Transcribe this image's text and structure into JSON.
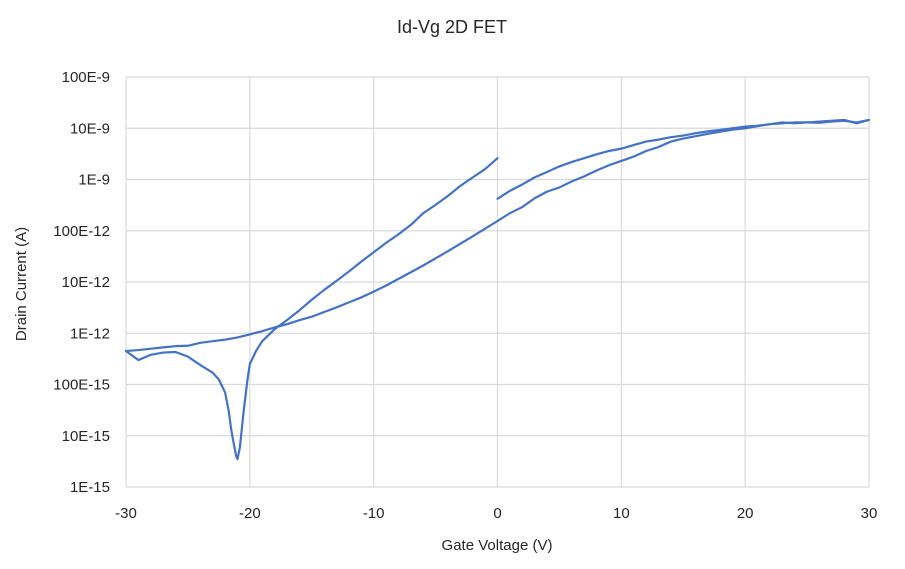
{
  "chart_data": {
    "type": "line",
    "title": "Id-Vg 2D FET",
    "xlabel": "Gate Voltage (V)",
    "ylabel": "Drain Current (A)",
    "xlim": [
      -30,
      30
    ],
    "xticks": [
      -30,
      -20,
      -10,
      0,
      10,
      20,
      30
    ],
    "xtick_labels": [
      "-30",
      "-20",
      "-10",
      "0",
      "10",
      "20",
      "30"
    ],
    "ylog": true,
    "ylim": [
      1e-15,
      1e-07
    ],
    "yticks": [
      1e-15,
      1e-14,
      1e-13,
      1e-12,
      1e-11,
      1e-10,
      1e-09,
      1e-08,
      1e-07
    ],
    "ytick_labels": [
      "1E-15",
      "10E-15",
      "100E-15",
      "1E-12",
      "10E-12",
      "100E-12",
      "1E-9",
      "10E-9",
      "100E-9"
    ],
    "grid": true,
    "legend": false,
    "color": "#4472C4",
    "series": [
      {
        "x": [
          -30,
          -29,
          -28,
          -27,
          -26,
          -25,
          -24.5,
          -24,
          -23,
          -22.5,
          -22,
          -21.7,
          -21.5,
          -21.3,
          -21.1,
          -21,
          -20.8,
          -20.5,
          -20.2,
          -20,
          -19.5,
          -19,
          -18,
          -17,
          -16,
          -15,
          -14,
          -13,
          -12,
          -11,
          -10,
          -9,
          -8,
          -7,
          -6,
          -5,
          -4,
          -3,
          -2,
          -1,
          0
        ],
        "y": [
          4.5e-13,
          3e-13,
          3.8e-13,
          4.2e-13,
          4.3e-13,
          3.5e-13,
          2.9e-13,
          2.4e-13,
          1.7e-13,
          1.25e-13,
          7e-14,
          3e-14,
          1.3e-14,
          7e-15,
          4e-15,
          3.5e-15,
          6e-15,
          3e-14,
          1.2e-13,
          2.5e-13,
          4.5e-13,
          7e-13,
          1.2e-12,
          1.8e-12,
          2.8e-12,
          4.5e-12,
          7e-12,
          1.05e-11,
          1.6e-11,
          2.5e-11,
          3.8e-11,
          5.8e-11,
          8.5e-11,
          1.3e-10,
          2.2e-10,
          3.2e-10,
          4.8e-10,
          7.5e-10,
          1.1e-09,
          1.6e-09,
          2.6e-09
        ]
      },
      {
        "x": [
          -30,
          -29,
          -28,
          -27,
          -26,
          -25,
          -24,
          -23,
          -22,
          -21,
          -20,
          -19,
          -18,
          -17,
          -16,
          -15,
          -14,
          -13,
          -12,
          -11,
          -10,
          -9,
          -8,
          -7,
          -6,
          -5,
          -4,
          -3,
          -2,
          -1,
          0
        ],
        "y": [
          4.5e-13,
          4.7e-13,
          5e-13,
          5.3e-13,
          5.6e-13,
          5.7e-13,
          6.5e-13,
          7e-13,
          7.5e-13,
          8.3e-13,
          9.5e-13,
          1.1e-12,
          1.3e-12,
          1.5e-12,
          1.8e-12,
          2.1e-12,
          2.6e-12,
          3.2e-12,
          4e-12,
          5e-12,
          6.5e-12,
          8.5e-12,
          1.15e-11,
          1.55e-11,
          2.1e-11,
          2.9e-11,
          4e-11,
          5.6e-11,
          7.8e-11,
          1.1e-10,
          1.55e-10
        ]
      },
      {
        "x": [
          0,
          1,
          2,
          3,
          4,
          5,
          6,
          7,
          8,
          9,
          10,
          11,
          12,
          13,
          14,
          15,
          16,
          17,
          18,
          19,
          20,
          21,
          22,
          23,
          24,
          25,
          26,
          27,
          28,
          29,
          30
        ],
        "y": [
          1.55e-10,
          2.2e-10,
          2.9e-10,
          4.3e-10,
          5.8e-10,
          7e-10,
          9.2e-10,
          1.15e-09,
          1.5e-09,
          1.9e-09,
          2.3e-09,
          2.8e-09,
          3.6e-09,
          4.3e-09,
          5.5e-09,
          6.3e-09,
          7e-09,
          7.8e-09,
          8.6e-09,
          9.4e-09,
          1e-08,
          1.1e-08,
          1.2e-08,
          1.3e-08,
          1.25e-08,
          1.3e-08,
          1.35e-08,
          1.4e-08,
          1.45e-08,
          1.25e-08,
          1.45e-08
        ]
      },
      {
        "x": [
          0,
          1,
          2,
          3,
          4,
          5,
          6,
          7,
          8,
          9,
          10,
          11,
          12,
          13,
          14,
          15,
          16,
          17,
          18,
          19,
          20,
          21,
          22,
          23,
          24,
          25,
          26,
          27,
          28,
          29,
          30
        ],
        "y": [
          4.2e-10,
          6e-10,
          8e-10,
          1.1e-09,
          1.4e-09,
          1.8e-09,
          2.2e-09,
          2.6e-09,
          3.1e-09,
          3.6e-09,
          4e-09,
          4.7e-09,
          5.5e-09,
          6e-09,
          6.7e-09,
          7.2e-09,
          8e-09,
          8.7e-09,
          9.3e-09,
          1e-08,
          1.08e-08,
          1.12e-08,
          1.2e-08,
          1.25e-08,
          1.3e-08,
          1.3e-08,
          1.28e-08,
          1.35e-08,
          1.4e-08,
          1.3e-08,
          1.45e-08
        ]
      }
    ]
  }
}
